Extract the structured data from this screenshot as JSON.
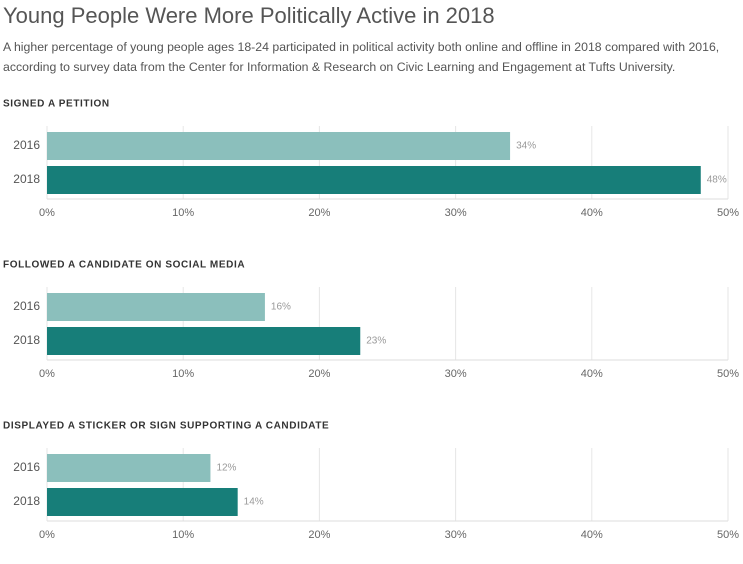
{
  "title": "Young People Were More Politically Active in 2018",
  "subtitle": "A higher percentage of young people ages 18-24 participated in political activity both online and offline in 2018 compared with 2016, according to survey data from the Center for Information & Research on Civic Learning and Engagement at Tufts University.",
  "chart_data": [
    {
      "type": "bar",
      "orientation": "horizontal",
      "title": "SIGNED A PETITION",
      "categories": [
        "2016",
        "2018"
      ],
      "values": [
        34,
        48
      ],
      "value_labels": [
        "34%",
        "48%"
      ],
      "colors": [
        "#8bbfbc",
        "#177e79"
      ],
      "xlim": [
        0,
        50
      ],
      "xticks": [
        {
          "value": 0,
          "label": "0%"
        },
        {
          "value": 10,
          "label": "10%"
        },
        {
          "value": 20,
          "label": "20%"
        },
        {
          "value": 30,
          "label": "30%"
        },
        {
          "value": 40,
          "label": "40%"
        },
        {
          "value": 50,
          "label": "50%"
        }
      ],
      "grid": true
    },
    {
      "type": "bar",
      "orientation": "horizontal",
      "title": "FOLLOWED A CANDIDATE ON SOCIAL MEDIA",
      "categories": [
        "2016",
        "2018"
      ],
      "values": [
        16,
        23
      ],
      "value_labels": [
        "16%",
        "23%"
      ],
      "colors": [
        "#8bbfbc",
        "#177e79"
      ],
      "xlim": [
        0,
        50
      ],
      "xticks": [
        {
          "value": 0,
          "label": "0%"
        },
        {
          "value": 10,
          "label": "10%"
        },
        {
          "value": 20,
          "label": "20%"
        },
        {
          "value": 30,
          "label": "30%"
        },
        {
          "value": 40,
          "label": "40%"
        },
        {
          "value": 50,
          "label": "50%"
        }
      ],
      "grid": true
    },
    {
      "type": "bar",
      "orientation": "horizontal",
      "title": "DISPLAYED A STICKER OR SIGN SUPPORTING A CANDIDATE",
      "categories": [
        "2016",
        "2018"
      ],
      "values": [
        12,
        14
      ],
      "value_labels": [
        "12%",
        "14%"
      ],
      "colors": [
        "#8bbfbc",
        "#177e79"
      ],
      "xlim": [
        0,
        50
      ],
      "xticks": [
        {
          "value": 0,
          "label": "0%"
        },
        {
          "value": 10,
          "label": "10%"
        },
        {
          "value": 20,
          "label": "20%"
        },
        {
          "value": 30,
          "label": "30%"
        },
        {
          "value": 40,
          "label": "40%"
        },
        {
          "value": 50,
          "label": "50%"
        }
      ],
      "grid": true
    }
  ]
}
